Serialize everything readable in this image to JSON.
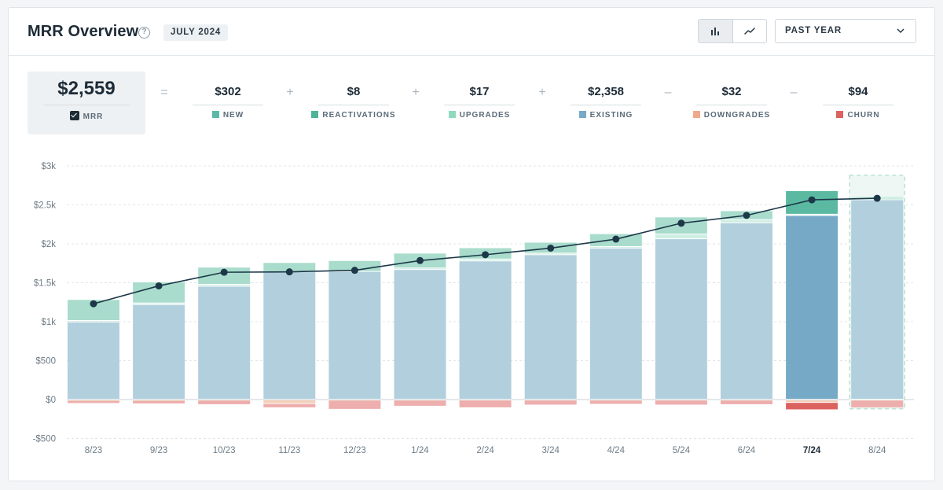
{
  "header": {
    "title": "MRR Overview",
    "help_icon": "question-circle-icon",
    "date_badge": "JULY 2024",
    "view_toggle": {
      "bar_icon": "bar-chart-icon",
      "line_icon": "line-chart-icon",
      "active": "bar"
    },
    "period_select": {
      "value": "PAST YEAR",
      "icon": "chevron-down-icon"
    }
  },
  "summary": {
    "mrr": {
      "value": "$2,559",
      "label": "MRR",
      "checked": true
    },
    "operators": [
      "=",
      "+",
      "+",
      "+",
      "–",
      "–"
    ],
    "components": [
      {
        "value": "$302",
        "label": "NEW",
        "color": "#5bbaa5"
      },
      {
        "value": "$8",
        "label": "REACTIVATIONS",
        "color": "#4fb39a"
      },
      {
        "value": "$17",
        "label": "UPGRADES",
        "color": "#8fd9bf"
      },
      {
        "value": "$2,358",
        "label": "EXISTING",
        "color": "#78a9c6"
      },
      {
        "value": "$32",
        "label": "DOWNGRADES",
        "color": "#f0a98a"
      },
      {
        "value": "$94",
        "label": "CHURN",
        "color": "#dc6260"
      }
    ]
  },
  "colors": {
    "existing": "#b2cfdd",
    "existing_active": "#76a9c6",
    "new": "#a9dccc",
    "new_active": "#5bb9a2",
    "upgrades": "#cfeee4",
    "churn": "#eeaeae",
    "churn_active": "#dc6260",
    "downgrades": "#f2cfb8",
    "line": "#1d3848",
    "grid": "#e1e6ea",
    "axis_text": "#6e7c87"
  },
  "chart_data": {
    "type": "bar",
    "stacked": true,
    "title": "MRR Overview",
    "xlabel": "",
    "ylabel": "",
    "ylim": [
      -500,
      3000
    ],
    "y_ticks": [
      -500,
      0,
      500,
      1000,
      1500,
      2000,
      2500,
      3000
    ],
    "y_tick_labels": [
      "-$500",
      "$0",
      "$500",
      "$1k",
      "$1.5k",
      "$2k",
      "$2.5k",
      "$3k"
    ],
    "grid": true,
    "categories": [
      "8/23",
      "9/23",
      "10/23",
      "11/23",
      "12/23",
      "1/24",
      "2/24",
      "3/24",
      "4/24",
      "5/24",
      "6/24",
      "7/24",
      "8/24"
    ],
    "highlighted_category": "7/24",
    "forecast_category": "8/24",
    "series": [
      {
        "name": "Existing",
        "values": [
          990,
          1215,
          1450,
          1635,
          1640,
          1665,
          1775,
          1855,
          1940,
          2060,
          2265,
          2358,
          2560
        ]
      },
      {
        "name": "Upgrades",
        "values": [
          20,
          20,
          25,
          0,
          0,
          20,
          25,
          20,
          20,
          60,
          40,
          17,
          45
        ]
      },
      {
        "name": "New",
        "values": [
          270,
          270,
          220,
          120,
          140,
          190,
          145,
          140,
          165,
          220,
          115,
          302,
          0
        ]
      },
      {
        "name": "Reactivations",
        "values": [
          0,
          0,
          0,
          0,
          0,
          0,
          0,
          0,
          0,
          0,
          0,
          8,
          0
        ]
      },
      {
        "name": "Downgrades",
        "values": [
          -10,
          -10,
          -5,
          -45,
          -5,
          -5,
          -5,
          -5,
          -5,
          -5,
          -5,
          -32,
          -5
        ]
      },
      {
        "name": "Churn",
        "values": [
          -35,
          -40,
          -55,
          -55,
          -115,
          -75,
          -95,
          -60,
          -50,
          -60,
          -55,
          -94,
          -95
        ]
      }
    ],
    "line_series": {
      "name": "MRR",
      "values": [
        1230,
        1460,
        1635,
        1640,
        1660,
        1785,
        1860,
        1945,
        2060,
        2265,
        2365,
        2565,
        2585
      ]
    }
  }
}
